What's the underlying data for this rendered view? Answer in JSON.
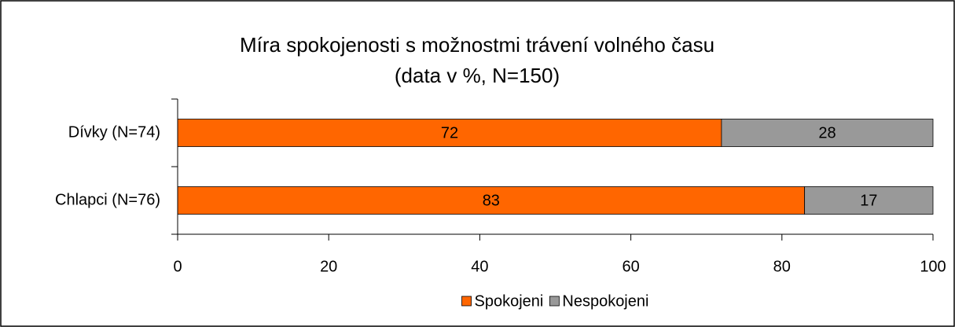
{
  "chart_data": {
    "type": "stacked_barh",
    "title": "Míra spokojenosti s možnostmi trávení volného času",
    "subtitle": "(data v %, N=150)",
    "categories": [
      "Dívky (N=74)",
      "Chlapci (N=76)"
    ],
    "series": [
      {
        "name": "Spokojeni",
        "color": "#ff6600",
        "values": [
          72,
          83
        ]
      },
      {
        "name": "Nespokojeni",
        "color": "#999999",
        "values": [
          28,
          17
        ]
      }
    ],
    "xlim": [
      0,
      100
    ],
    "xticks": [
      0,
      20,
      40,
      60,
      80,
      100
    ],
    "legend": "bottom"
  }
}
